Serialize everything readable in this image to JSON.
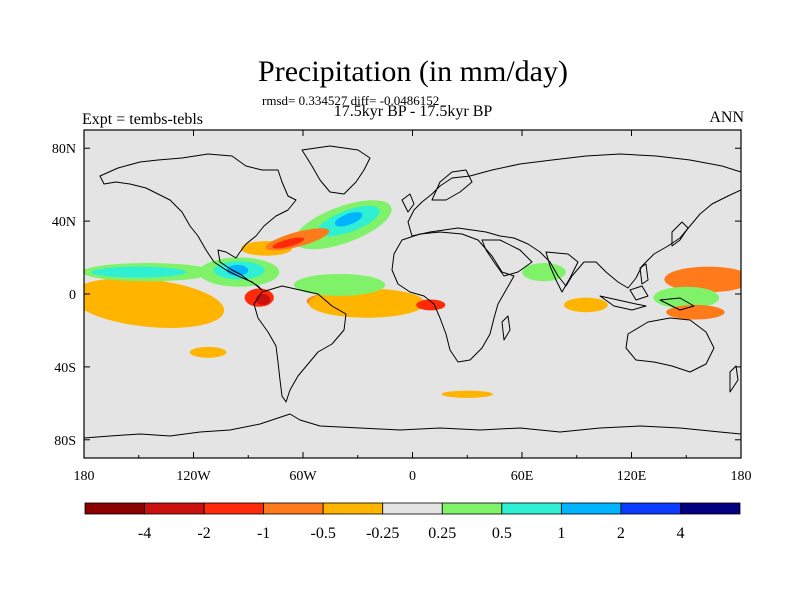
{
  "header": {
    "title": "Precipitation (in mm/day)",
    "stats": "rmsd= 0.334527 diff= -0.0486152",
    "subtitle": "17.5kyr BP - 17.5kyr BP",
    "expt": "Expt = tembs-tebls",
    "season": "ANN"
  },
  "chart_data": {
    "type": "heatmap",
    "title": "Precipitation (in mm/day)",
    "projection": "cylindrical-equidistant",
    "xlim": [
      -180,
      180
    ],
    "ylim": [
      -90,
      90
    ],
    "x_ticks": [
      {
        "value": -180,
        "label": "180"
      },
      {
        "value": -120,
        "label": "120W"
      },
      {
        "value": -60,
        "label": "60W"
      },
      {
        "value": 0,
        "label": "0"
      },
      {
        "value": 60,
        "label": "60E"
      },
      {
        "value": 120,
        "label": "120E"
      },
      {
        "value": 180,
        "label": "180"
      }
    ],
    "y_ticks": [
      {
        "value": 80,
        "label": "80N"
      },
      {
        "value": 40,
        "label": "40N"
      },
      {
        "value": 0,
        "label": "0"
      },
      {
        "value": -40,
        "label": "40S"
      },
      {
        "value": -80,
        "label": "80S"
      }
    ],
    "colorbar": {
      "levels": [
        -4,
        -2,
        -1,
        -0.5,
        -0.25,
        0.25,
        0.5,
        1,
        2,
        4
      ],
      "labels": [
        "-4",
        "-2",
        "-1",
        "-0.5",
        "-0.25",
        "0.25",
        "0.5",
        "1",
        "2",
        "4"
      ],
      "colors": [
        "#8b0000",
        "#cc0f0f",
        "#ff2a0a",
        "#ff7a1a",
        "#ffb400",
        "#e4e4e4",
        "#7ff26a",
        "#2ff0d2",
        "#00b4ff",
        "#0a3cff",
        "#000080"
      ]
    },
    "background_color": "#e4e4e4",
    "regions": [
      {
        "name": "eastern-pacific-dry",
        "cls": "-1",
        "cx": -158,
        "cy": -4,
        "rx": 24,
        "ry": 8,
        "rot": -4
      },
      {
        "name": "eastern-pacific-dry-core",
        "cls": "-2",
        "cx": -163,
        "cy": -6,
        "rx": 16,
        "ry": 6,
        "rot": -4
      },
      {
        "name": "pacific-south-band",
        "cls": "-0.5",
        "cx": -148,
        "cy": -4,
        "rx": 38,
        "ry": 11,
        "rot": -6
      },
      {
        "name": "pacific-south-band-edge",
        "cls": "-0.25",
        "cx": -145,
        "cy": -5,
        "rx": 42,
        "ry": 13,
        "rot": -6
      },
      {
        "name": "ecuador-dry",
        "cls": "-1",
        "cx": -84,
        "cy": -2,
        "rx": 8,
        "ry": 5,
        "rot": 0
      },
      {
        "name": "ecuador-dry-core",
        "cls": "-2",
        "cx": -82,
        "cy": -3,
        "rx": 4,
        "ry": 3,
        "rot": 0
      },
      {
        "name": "north-pacific-itcz-wet",
        "cls": "0.5",
        "cx": -145,
        "cy": 12,
        "rx": 36,
        "ry": 5,
        "rot": 0
      },
      {
        "name": "north-pacific-itcz-core",
        "cls": "1",
        "cx": -150,
        "cy": 12,
        "rx": 26,
        "ry": 3,
        "rot": 0
      },
      {
        "name": "central-america-wet",
        "cls": "0.5",
        "cx": -95,
        "cy": 12,
        "rx": 22,
        "ry": 8,
        "rot": 0
      },
      {
        "name": "central-america-wet-core",
        "cls": "1",
        "cx": -95,
        "cy": 13,
        "rx": 14,
        "ry": 5,
        "rot": 0
      },
      {
        "name": "central-america-wet-max",
        "cls": "2",
        "cx": -96,
        "cy": 13,
        "rx": 6,
        "ry": 3,
        "rot": 0
      },
      {
        "name": "gulf-of-mexico-dry",
        "cls": "-0.25",
        "cx": -80,
        "cy": 25,
        "rx": 14,
        "ry": 4,
        "rot": 0
      },
      {
        "name": "north-atlantic-wet",
        "cls": "0.5",
        "cx": -38,
        "cy": 38,
        "rx": 28,
        "ry": 10,
        "rot": 20
      },
      {
        "name": "north-atlantic-wet-core",
        "cls": "1",
        "cx": -35,
        "cy": 40,
        "rx": 18,
        "ry": 6,
        "rot": 20
      },
      {
        "name": "north-atlantic-wet-max",
        "cls": "2",
        "cx": -35,
        "cy": 41,
        "rx": 8,
        "ry": 3,
        "rot": 20
      },
      {
        "name": "us-east-coast-dry",
        "cls": "-0.5",
        "cx": -63,
        "cy": 30,
        "rx": 18,
        "ry": 4,
        "rot": 15
      },
      {
        "name": "us-east-coast-dry-core",
        "cls": "-1",
        "cx": -68,
        "cy": 28,
        "rx": 9,
        "ry": 2,
        "rot": 15
      },
      {
        "name": "atlantic-south-band-dry",
        "cls": "-0.5",
        "cx": -30,
        "cy": -4,
        "rx": 28,
        "ry": 6,
        "rot": 0
      },
      {
        "name": "south-atlantic-tropical-dry",
        "cls": "-0.25",
        "cx": -25,
        "cy": -5,
        "rx": 32,
        "ry": 8,
        "rot": 0
      },
      {
        "name": "atlantic-equatorial-wet",
        "cls": "0.5",
        "cx": -40,
        "cy": 5,
        "rx": 25,
        "ry": 6,
        "rot": 0
      },
      {
        "name": "african-west-coast-dry",
        "cls": "-1",
        "cx": 10,
        "cy": -6,
        "rx": 8,
        "ry": 3,
        "rot": 0
      },
      {
        "name": "arabian-sea-wet",
        "cls": "0.5",
        "cx": 72,
        "cy": 12,
        "rx": 12,
        "ry": 5,
        "rot": 0
      },
      {
        "name": "indian-ocean-south-dry",
        "cls": "-0.25",
        "cx": 95,
        "cy": -6,
        "rx": 12,
        "ry": 4,
        "rot": 0
      },
      {
        "name": "western-pacific-dry",
        "cls": "-1",
        "cx": 160,
        "cy": 10,
        "rx": 20,
        "ry": 4,
        "rot": 0
      },
      {
        "name": "western-pacific-dry-wide",
        "cls": "-0.5",
        "cx": 162,
        "cy": 8,
        "rx": 24,
        "ry": 7,
        "rot": 0
      },
      {
        "name": "maritime-continent-wet",
        "cls": "0.5",
        "cx": 150,
        "cy": -2,
        "rx": 18,
        "ry": 6,
        "rot": 0
      },
      {
        "name": "southwest-pacific-dry",
        "cls": "-0.5",
        "cx": 155,
        "cy": -10,
        "rx": 16,
        "ry": 4,
        "rot": 0
      },
      {
        "name": "southern-ocean-dry",
        "cls": "-0.25",
        "cx": -112,
        "cy": -32,
        "rx": 10,
        "ry": 3,
        "rot": 0
      },
      {
        "name": "south-atlantic-midlat-dry",
        "cls": "-0.25",
        "cx": 30,
        "cy": -55,
        "rx": 14,
        "ry": 2,
        "rot": 0
      }
    ]
  }
}
